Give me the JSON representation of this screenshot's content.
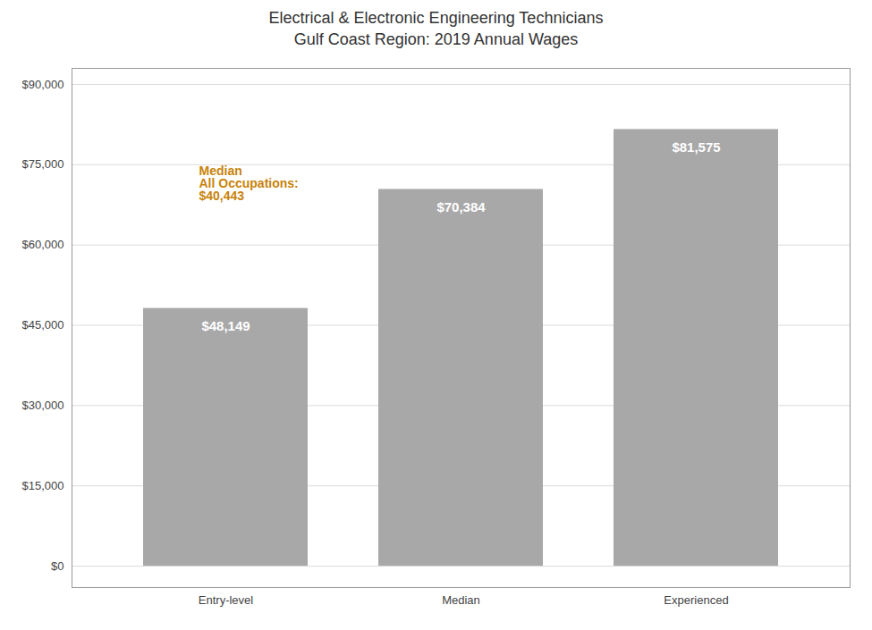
{
  "chart_data": {
    "type": "bar",
    "title": "Electrical & Electronic Engineering Technicians",
    "subtitle": "Gulf Coast Region: 2019 Annual Wages",
    "categories": [
      "Entry-level",
      "Median",
      "Experienced"
    ],
    "values": [
      48149,
      70384,
      81575
    ],
    "value_labels": [
      "$48,149",
      "$70,384",
      "$81,575"
    ],
    "data_labels": true,
    "color": "#a8a8a8",
    "ylim": [
      -4000,
      93000
    ],
    "yticks": [
      {
        "value": 0,
        "label": "$0"
      },
      {
        "value": 15000,
        "label": "$15,000"
      },
      {
        "value": 30000,
        "label": "$30,000"
      },
      {
        "value": 45000,
        "label": "$45,000"
      },
      {
        "value": 60000,
        "label": "$60,000"
      },
      {
        "value": 75000,
        "label": "$75,000"
      },
      {
        "value": 90000,
        "label": "$90,000"
      }
    ],
    "grid": true,
    "annotations": [
      {
        "text": "Median\nAll Occupations:\n$40,443",
        "color": "#c8820a"
      }
    ]
  }
}
